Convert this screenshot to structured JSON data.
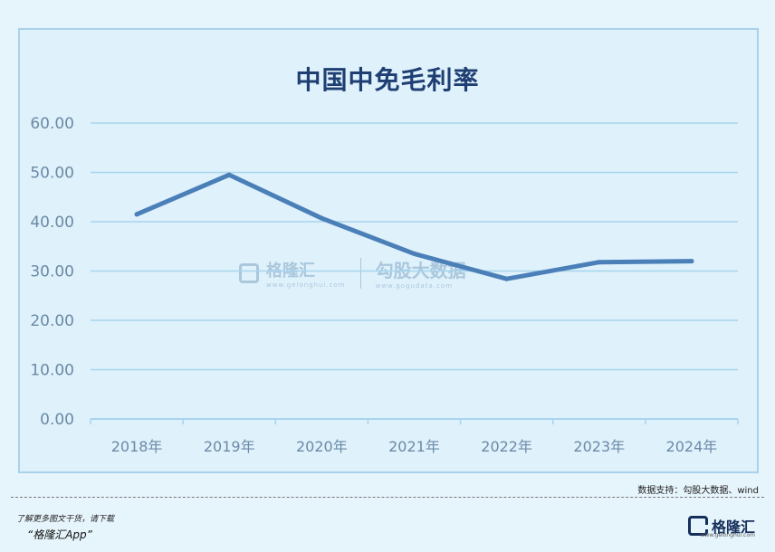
{
  "chart_data": {
    "type": "line",
    "title": "中国中免毛利率",
    "categories": [
      "2018年",
      "2019年",
      "2020年",
      "2021年",
      "2022年",
      "2023年",
      "2024年"
    ],
    "series": [
      {
        "values": [
          41.5,
          49.5,
          40.7,
          33.5,
          28.4,
          31.8,
          32.0
        ]
      }
    ],
    "ylim": [
      0,
      60
    ],
    "yticks": [
      "0.00",
      "10.00",
      "20.00",
      "30.00",
      "40.00",
      "50.00",
      "60.00"
    ],
    "grid": true,
    "colors": {
      "line": "#4a7fb8",
      "grid": "#a7d4ee",
      "axis_text": "#6b8aa6"
    }
  },
  "source": "数据支持：勾股大数据、wind",
  "promo": {
    "line1": "了解更多图文干货，请下载",
    "line2": "“格隆汇App”"
  },
  "brand": {
    "name": "格隆汇",
    "url": "www.gelonghui.com"
  },
  "watermark": {
    "name": "格隆汇",
    "name_sub": "www.gelonghui.com",
    "data_name": "勾股大数据",
    "data_url": "www.gogudata.com"
  }
}
